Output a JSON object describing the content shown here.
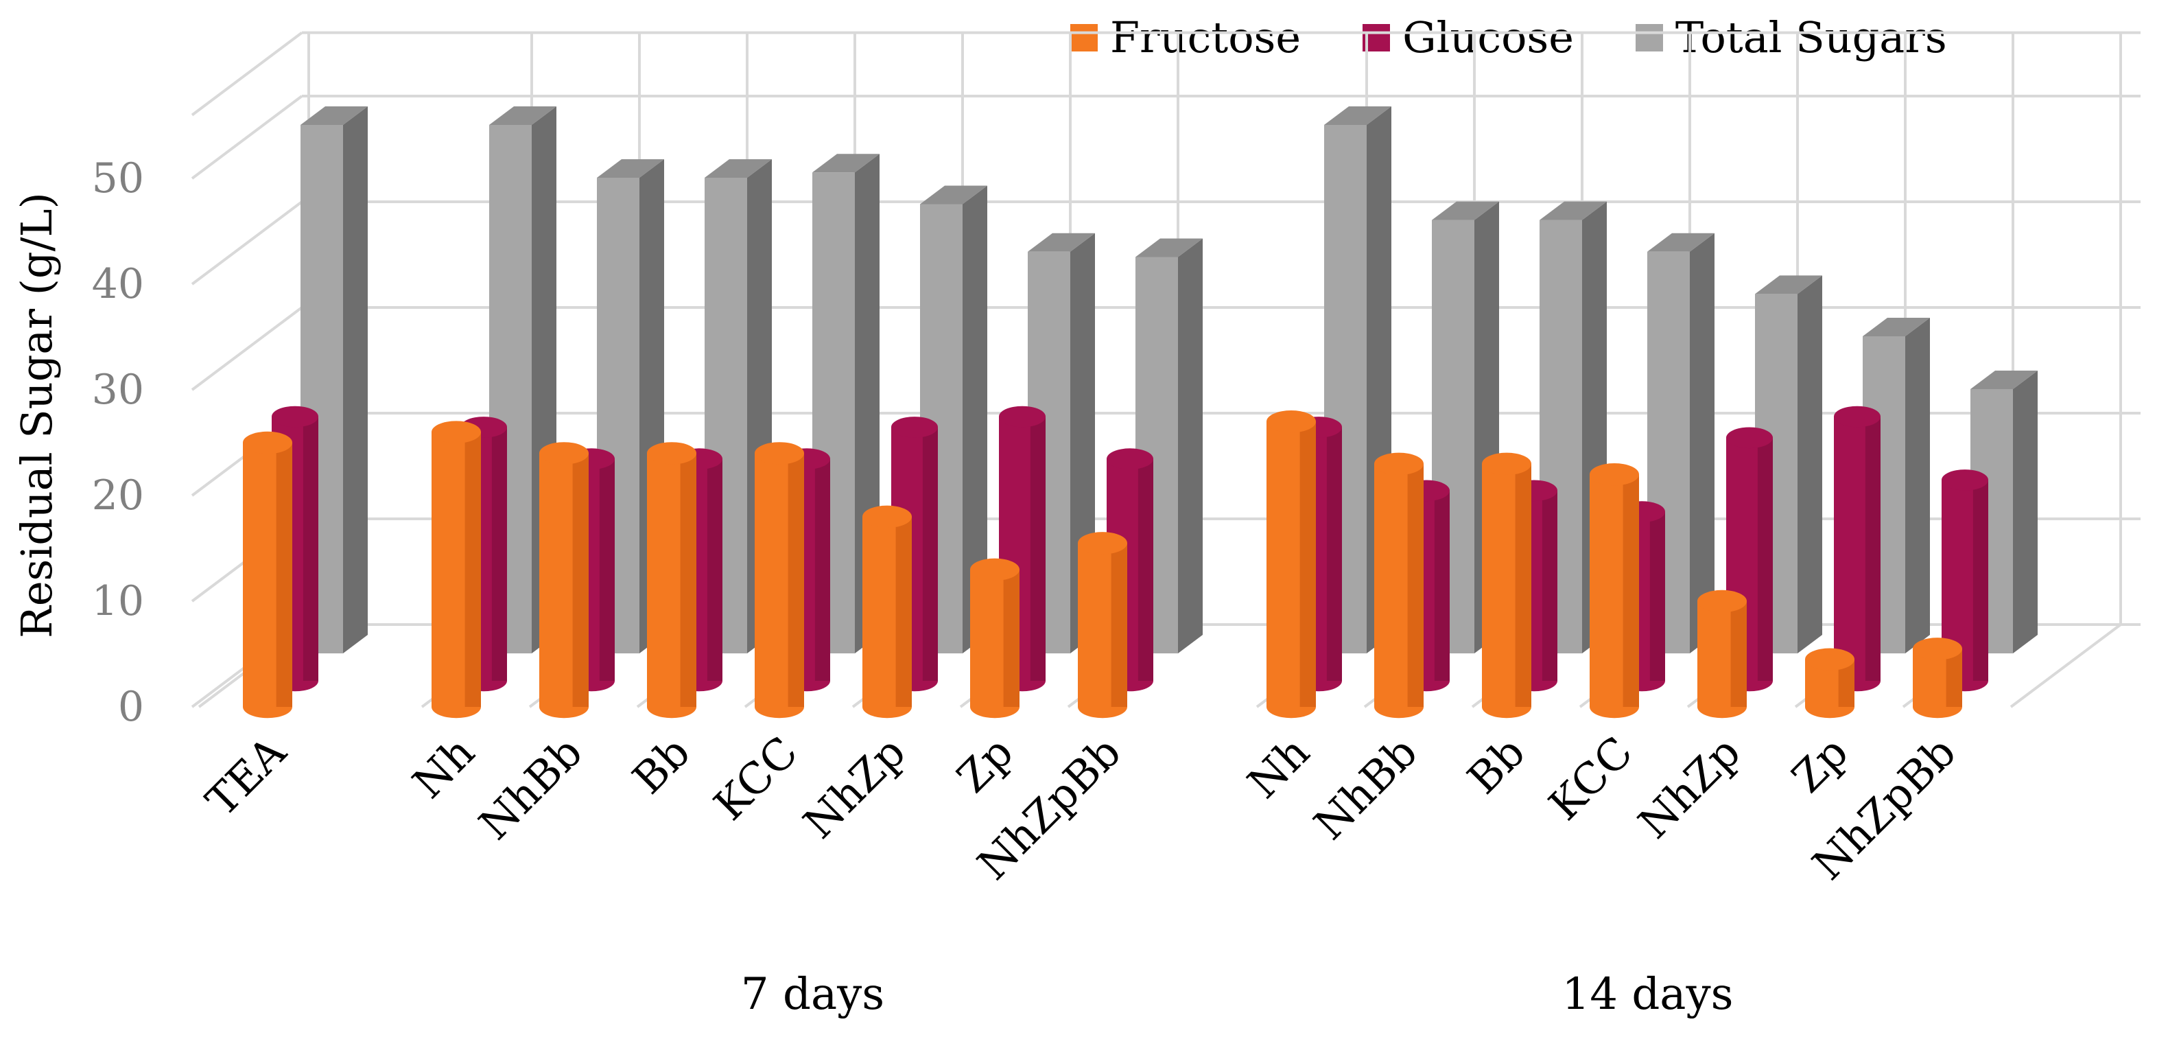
{
  "chart_data": {
    "type": "bar",
    "style": "3d-cylinder",
    "ylabel": "Residual Sugar (g/L)",
    "ylim": [
      0,
      50
    ],
    "yticks": [
      0,
      10,
      20,
      30,
      40,
      50
    ],
    "grid": true,
    "legend_position": "top-right",
    "categories": [
      "TEA",
      "Nh",
      "NhBb",
      "Bb",
      "KCC",
      "NhZp",
      "Zp",
      "NhZpBb",
      "Nh",
      "NhBb",
      "Bb",
      "KCC",
      "NhZp",
      "Zp",
      "NhZpBb"
    ],
    "groups": [
      {
        "label": "",
        "count": 1
      },
      {
        "label": "7 days",
        "count": 7
      },
      {
        "label": "14 days",
        "count": 7
      }
    ],
    "series": [
      {
        "name": "Fructose",
        "color": "#F47920",
        "values": [
          25,
          26,
          24,
          24,
          24,
          18,
          13,
          15.5,
          27,
          23,
          23,
          22,
          10,
          4.5,
          5.5
        ]
      },
      {
        "name": "Glucose",
        "color": "#A51150",
        "values": [
          25,
          24,
          21,
          21,
          21,
          24,
          25,
          21,
          24,
          18,
          18,
          16,
          23,
          25,
          19
        ]
      },
      {
        "name": "Total Sugars",
        "color": "#A6A6A6",
        "values": [
          50,
          50,
          45,
          45,
          45.5,
          42.5,
          38,
          37.5,
          50,
          41,
          41,
          38,
          34,
          30,
          25
        ]
      }
    ]
  },
  "colors": {
    "fructose_side": "#C9560C",
    "glucose_side": "#7A0C3B",
    "total_side": "#6E6E6E",
    "grid": "#D9D9D9",
    "tick_text": "#808080"
  }
}
